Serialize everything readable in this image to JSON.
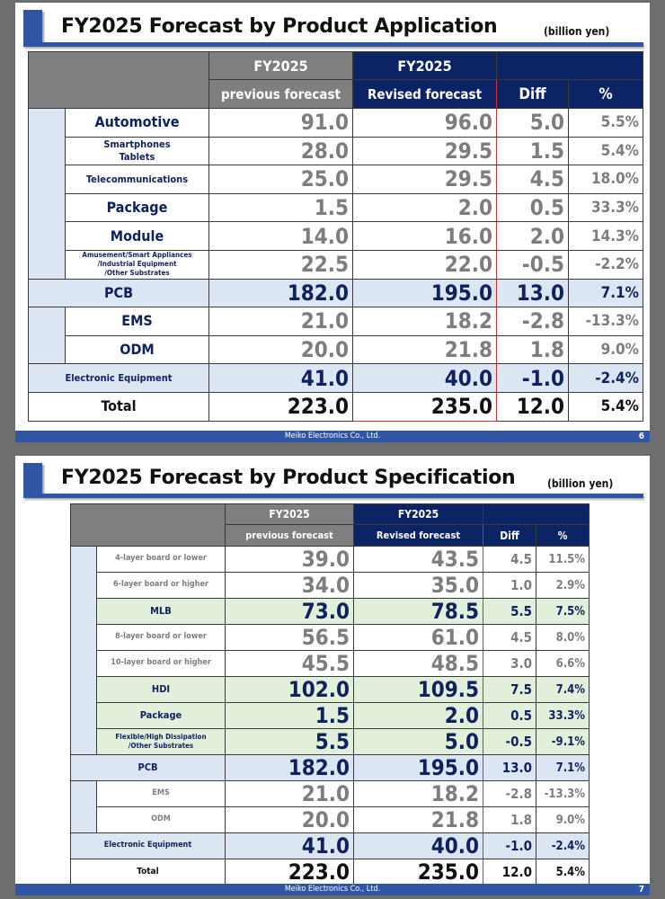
{
  "colors": {
    "accent": "#2f55a4",
    "header_navy": "#0c2366",
    "header_gray": "#7f7f7f",
    "subtotal_blue": "#dce6f2",
    "mid_green": "#e2efda",
    "revised_outline": "#d03030"
  },
  "slides": [
    {
      "title": "FY2025 Forecast by Product Application",
      "unit": "(billion yen)",
      "header": {
        "prev_year": "FY2025",
        "prev_label": "previous forecast",
        "rev_year": "FY2025",
        "rev_label": "Revised forecast",
        "diff": "Diff",
        "pct": "%"
      },
      "rows": [
        {
          "label": "Automotive",
          "prev": "91.0",
          "rev": "96.0",
          "diff": "5.0",
          "pct": "5.5%",
          "type": "item",
          "size": "lg"
        },
        {
          "label": "Smartphones\nTablets",
          "prev": "28.0",
          "rev": "29.5",
          "diff": "1.5",
          "pct": "5.4%",
          "type": "item",
          "size": "sm"
        },
        {
          "label": "Telecommunications",
          "prev": "25.0",
          "rev": "29.5",
          "diff": "4.5",
          "pct": "18.0%",
          "type": "item",
          "size": "sm"
        },
        {
          "label": "Package",
          "prev": "1.5",
          "rev": "2.0",
          "diff": "0.5",
          "pct": "33.3%",
          "type": "item",
          "size": "lg"
        },
        {
          "label": "Module",
          "prev": "14.0",
          "rev": "16.0",
          "diff": "2.0",
          "pct": "14.3%",
          "type": "item",
          "size": "lg"
        },
        {
          "label": "Amusement/Smart Appliances\n/Industrial Equipment\n/Other Substrates",
          "prev": "22.5",
          "rev": "22.0",
          "diff": "-0.5",
          "pct": "-2.2%",
          "type": "item",
          "size": "xs"
        },
        {
          "label": "PCB",
          "prev": "182.0",
          "rev": "195.0",
          "diff": "13.0",
          "pct": "7.1%",
          "type": "subtotal",
          "size": "lg"
        },
        {
          "label": "EMS",
          "prev": "21.0",
          "rev": "18.2",
          "diff": "-2.8",
          "pct": "-13.3%",
          "type": "item",
          "size": "lg"
        },
        {
          "label": "ODM",
          "prev": "20.0",
          "rev": "21.8",
          "diff": "1.8",
          "pct": "9.0%",
          "type": "item",
          "size": "lg"
        },
        {
          "label": "Electronic Equipment",
          "prev": "41.0",
          "rev": "40.0",
          "diff": "-1.0",
          "pct": "-2.4%",
          "type": "subtotal",
          "size": "sm"
        },
        {
          "label": "Total",
          "prev": "223.0",
          "rev": "235.0",
          "diff": "12.0",
          "pct": "5.4%",
          "type": "total",
          "size": "lg"
        }
      ],
      "footer": "Meiko Electronics Co., Ltd.",
      "page": "6"
    },
    {
      "title": "FY2025 Forecast by Product Specification",
      "unit": "(billion yen)",
      "header": {
        "prev_year": "FY2025",
        "prev_label": "previous forecast",
        "rev_year": "FY2025",
        "rev_label": "Revised forecast",
        "diff": "Diff",
        "pct": "%"
      },
      "rows": [
        {
          "label": "4-layer board or lower",
          "prev": "39.0",
          "rev": "43.5",
          "diff": "4.5",
          "pct": "11.5%",
          "type": "minor"
        },
        {
          "label": "6-layer board or higher",
          "prev": "34.0",
          "rev": "35.0",
          "diff": "1.0",
          "pct": "2.9%",
          "type": "minor"
        },
        {
          "label": "MLB",
          "prev": "73.0",
          "rev": "78.5",
          "diff": "5.5",
          "pct": "7.5%",
          "type": "mid"
        },
        {
          "label": "8-layer board or lower",
          "prev": "56.5",
          "rev": "61.0",
          "diff": "4.5",
          "pct": "8.0%",
          "type": "minor"
        },
        {
          "label": "10-layer board or higher",
          "prev": "45.5",
          "rev": "48.5",
          "diff": "3.0",
          "pct": "6.6%",
          "type": "minor"
        },
        {
          "label": "HDI",
          "prev": "102.0",
          "rev": "109.5",
          "diff": "7.5",
          "pct": "7.4%",
          "type": "mid"
        },
        {
          "label": "Package",
          "prev": "1.5",
          "rev": "2.0",
          "diff": "0.5",
          "pct": "33.3%",
          "type": "mid"
        },
        {
          "label": "Flexible/High Dissipation\n/Other Substrates",
          "prev": "5.5",
          "rev": "5.0",
          "diff": "-0.5",
          "pct": "-9.1%",
          "type": "mid"
        },
        {
          "label": "PCB",
          "prev": "182.0",
          "rev": "195.0",
          "diff": "13.0",
          "pct": "7.1%",
          "type": "subtotal"
        },
        {
          "label": "EMS",
          "prev": "21.0",
          "rev": "18.2",
          "diff": "-2.8",
          "pct": "-13.3%",
          "type": "minor"
        },
        {
          "label": "ODM",
          "prev": "20.0",
          "rev": "21.8",
          "diff": "1.8",
          "pct": "9.0%",
          "type": "minor"
        },
        {
          "label": "Electronic Equipment",
          "prev": "41.0",
          "rev": "40.0",
          "diff": "-1.0",
          "pct": "-2.4%",
          "type": "subtotal"
        },
        {
          "label": "Total",
          "prev": "223.0",
          "rev": "235.0",
          "diff": "12.0",
          "pct": "5.4%",
          "type": "total"
        }
      ],
      "footer": "Meiko Electronics Co., Ltd.",
      "page": "7"
    }
  ]
}
